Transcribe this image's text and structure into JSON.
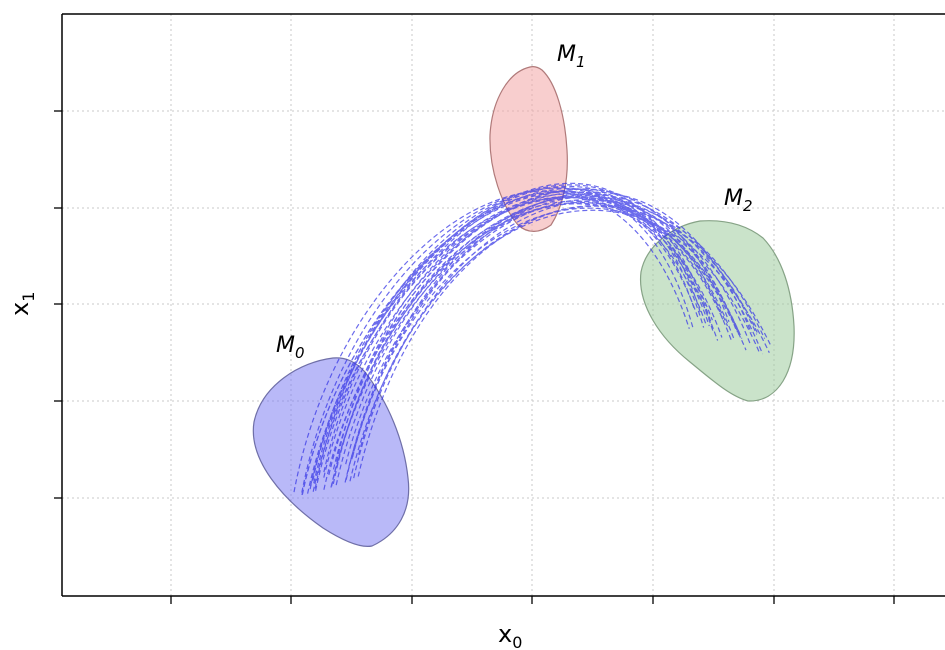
{
  "axes": {
    "xlabel_main": "x",
    "xlabel_sub": "0",
    "ylabel_main": "x",
    "ylabel_sub": "1",
    "grid": true,
    "grid_style": "dotted",
    "tick_labels_shown": false
  },
  "regions": [
    {
      "id": "M0",
      "label_main": "M",
      "label_sub": "0",
      "color": "#7f7ff2"
    },
    {
      "id": "M1",
      "label_main": "M",
      "label_sub": "1",
      "color": "#f3a5a5"
    },
    {
      "id": "M2",
      "label_main": "M",
      "label_sub": "2",
      "color": "#9fcc9f"
    }
  ],
  "trajectories": {
    "count": 32,
    "style": "dashed",
    "color": "#3a3ae6"
  }
}
